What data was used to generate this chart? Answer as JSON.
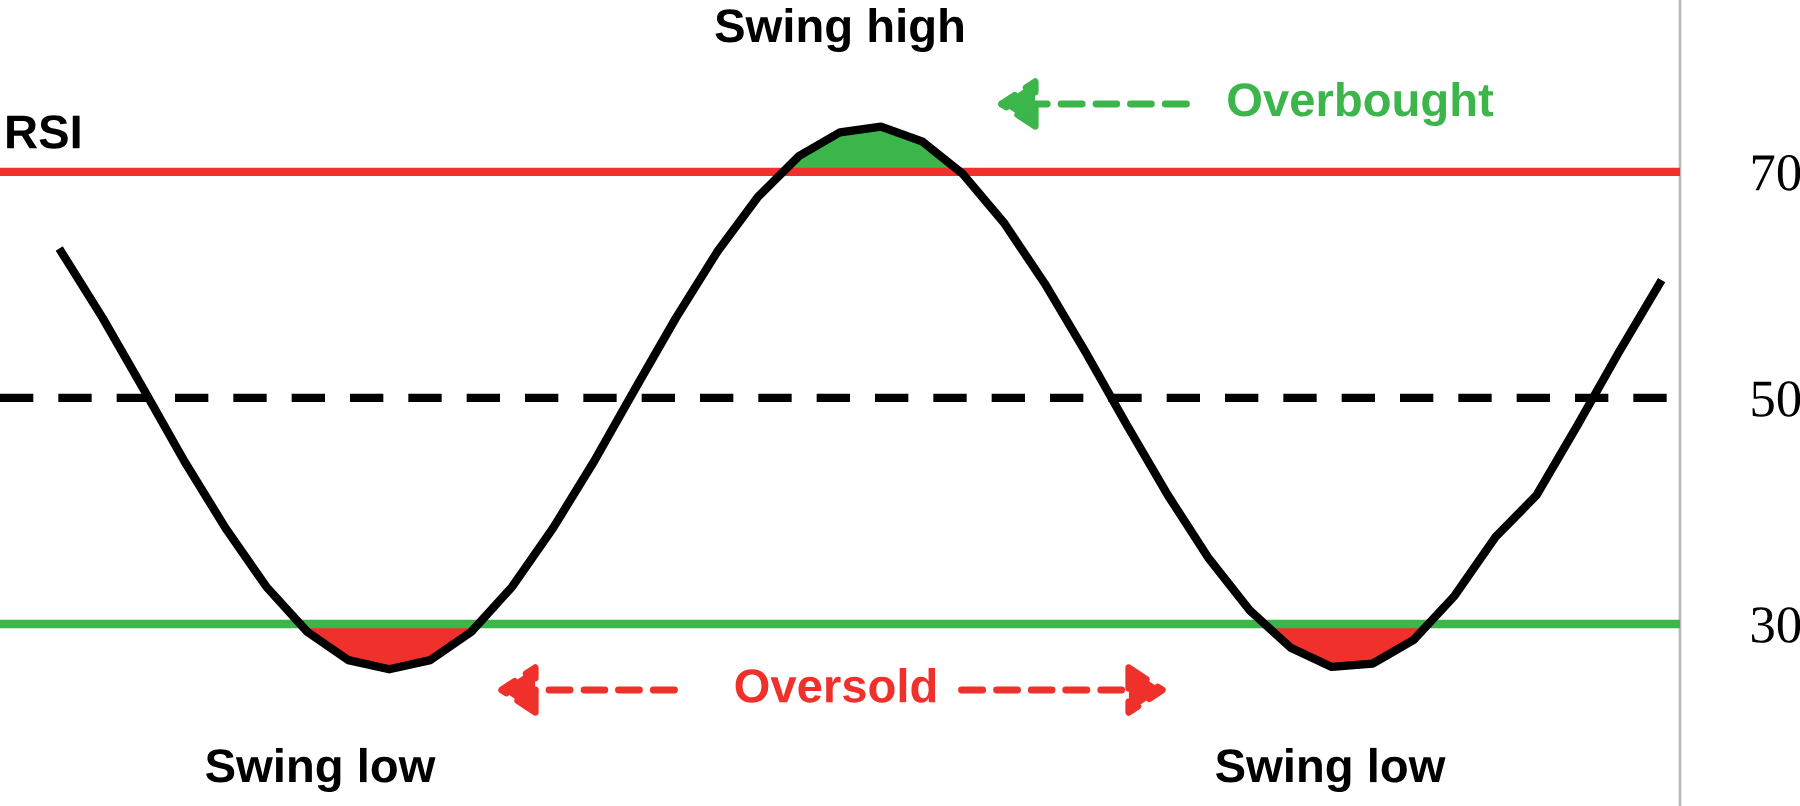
{
  "chart_data": {
    "type": "line",
    "categories": [
      null,
      null,
      null,
      null,
      null,
      null,
      null,
      null,
      null,
      null,
      null,
      null,
      null,
      null,
      null,
      null,
      null,
      null,
      null,
      null,
      null,
      null,
      null,
      null,
      null,
      null,
      null,
      null,
      null,
      null,
      null,
      null,
      null,
      null,
      null,
      null,
      null,
      null,
      null,
      null
    ],
    "series": [
      {
        "color": "#000000",
        "values": [
          62.9,
          57.1,
          50.8,
          44.4,
          38.5,
          33.3,
          29.3,
          26.8,
          26,
          26.8,
          29.3,
          33.3,
          38.5,
          44.4,
          50.8,
          57.1,
          62.9,
          67.8,
          71.4,
          73.5,
          74,
          72.7,
          69.8,
          65.5,
          60.1,
          54,
          47.6,
          41.4,
          35.8,
          31.2,
          27.9,
          26.2,
          26.5,
          28.6,
          32.5,
          37.7,
          41.4,
          47.6,
          54,
          60.1
        ]
      }
    ],
    "ylim": [
      13.9,
      85.2
    ],
    "yticks": [
      30,
      50,
      70
    ],
    "tick_labels": "y",
    "grid": false,
    "legend": false,
    "marker": "none",
    "line_style": "solid",
    "ref_lines": [
      {
        "axis": "y",
        "value": 70,
        "color": "#f0302a",
        "line_style": "solid"
      },
      {
        "axis": "y",
        "value": 50,
        "color": "#000000",
        "line_style": "dashed"
      },
      {
        "axis": "y",
        "value": 30,
        "color": "#3cb54a",
        "line_style": "solid"
      }
    ],
    "annotations": [
      "Swing high",
      "Swing low",
      "Swing low",
      "RSI",
      "Overbought",
      "Oversold"
    ]
  }
}
